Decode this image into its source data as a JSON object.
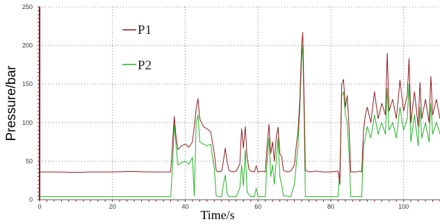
{
  "chart_data": {
    "type": "line",
    "title": "",
    "xlabel": "Time/s",
    "ylabel": "Pressure/bar",
    "xlim": [
      0,
      110
    ],
    "ylim": [
      0,
      250
    ],
    "x_ticks": [
      0,
      20,
      40,
      60,
      80,
      100
    ],
    "y_ticks": [
      0,
      50,
      100,
      150,
      200,
      250
    ],
    "grid": true,
    "legend": "top-left-inside",
    "series": [
      {
        "name": "P1",
        "color": "#8B1A1A",
        "points": [
          [
            0,
            36
          ],
          [
            5,
            36
          ],
          [
            10,
            35.5
          ],
          [
            15,
            36
          ],
          [
            20,
            36
          ],
          [
            25,
            36.5
          ],
          [
            30,
            36
          ],
          [
            36,
            36
          ],
          [
            36.5,
            70
          ],
          [
            37,
            108
          ],
          [
            37.5,
            80
          ],
          [
            38,
            65
          ],
          [
            39,
            70
          ],
          [
            40,
            72
          ],
          [
            41,
            68
          ],
          [
            42,
            75
          ],
          [
            42.5,
            95
          ],
          [
            43,
            118
          ],
          [
            43.5,
            131
          ],
          [
            44,
            105
          ],
          [
            45,
            95
          ],
          [
            46,
            92
          ],
          [
            47,
            88
          ],
          [
            48,
            60
          ],
          [
            48.5,
            38
          ],
          [
            49,
            36
          ],
          [
            50,
            37
          ],
          [
            50.5,
            50
          ],
          [
            51,
            67
          ],
          [
            51.5,
            50
          ],
          [
            52,
            38
          ],
          [
            53,
            36
          ],
          [
            54,
            37
          ],
          [
            55,
            46
          ],
          [
            55.5,
            92
          ],
          [
            56,
            67
          ],
          [
            56.5,
            95
          ],
          [
            57,
            55
          ],
          [
            57.5,
            40
          ],
          [
            58,
            37
          ],
          [
            59,
            36
          ],
          [
            59.5,
            44
          ],
          [
            60,
            36
          ],
          [
            61,
            37
          ],
          [
            62,
            36
          ],
          [
            62.5,
            70
          ],
          [
            63,
            98
          ],
          [
            63.5,
            60
          ],
          [
            64,
            75
          ],
          [
            64.5,
            50
          ],
          [
            65,
            80
          ],
          [
            65.5,
            94
          ],
          [
            66,
            60
          ],
          [
            66.5,
            56
          ],
          [
            67,
            38
          ],
          [
            68,
            36
          ],
          [
            69,
            37
          ],
          [
            70,
            45
          ],
          [
            70.5,
            70
          ],
          [
            71,
            90
          ],
          [
            71.5,
            130
          ],
          [
            72,
            200
          ],
          [
            72.3,
            217
          ],
          [
            72.7,
            120
          ],
          [
            73,
            38
          ],
          [
            74,
            36
          ],
          [
            76,
            37
          ],
          [
            78,
            36
          ],
          [
            80,
            36
          ],
          [
            82,
            37
          ],
          [
            82.5,
            20
          ],
          [
            83,
            150
          ],
          [
            83.5,
            156
          ],
          [
            84,
            120
          ],
          [
            84.5,
            135
          ],
          [
            85,
            95
          ],
          [
            85.5,
            36
          ],
          [
            87,
            36
          ],
          [
            88,
            37
          ],
          [
            88.5,
            36
          ],
          [
            89,
            90
          ],
          [
            89.5,
            110
          ],
          [
            90,
            120
          ],
          [
            91,
            100
          ],
          [
            92,
            140
          ],
          [
            93,
            105
          ],
          [
            94,
            125
          ],
          [
            95,
            110
          ],
          [
            95.5,
            190
          ],
          [
            96,
            115
          ],
          [
            97,
            130
          ],
          [
            98,
            105
          ],
          [
            99,
            155
          ],
          [
            100,
            115
          ],
          [
            101,
            135
          ],
          [
            101.5,
            183
          ],
          [
            102,
            100
          ],
          [
            103,
            140
          ],
          [
            104,
            95
          ],
          [
            104.5,
            152
          ],
          [
            105,
            105
          ],
          [
            106,
            130
          ],
          [
            107,
            100
          ],
          [
            107.5,
            160
          ],
          [
            108,
            110
          ],
          [
            109,
            130
          ],
          [
            110,
            105
          ]
        ]
      },
      {
        "name": "P2",
        "color": "#22B022",
        "points": [
          [
            0,
            4
          ],
          [
            5,
            4
          ],
          [
            10,
            4
          ],
          [
            15,
            4
          ],
          [
            20,
            4
          ],
          [
            25,
            4
          ],
          [
            30,
            4
          ],
          [
            36,
            4
          ],
          [
            36.5,
            40
          ],
          [
            37,
            98
          ],
          [
            37.5,
            70
          ],
          [
            38,
            45
          ],
          [
            39,
            48
          ],
          [
            40,
            50
          ],
          [
            41,
            46
          ],
          [
            42,
            55
          ],
          [
            42.5,
            5
          ],
          [
            43,
            100
          ],
          [
            43.5,
            110
          ],
          [
            44,
            75
          ],
          [
            45,
            72
          ],
          [
            46,
            70
          ],
          [
            47,
            72
          ],
          [
            48,
            40
          ],
          [
            48.5,
            5
          ],
          [
            49,
            4
          ],
          [
            50,
            4
          ],
          [
            50.5,
            20
          ],
          [
            51,
            32
          ],
          [
            51.5,
            8
          ],
          [
            52,
            4
          ],
          [
            54,
            4
          ],
          [
            55,
            15
          ],
          [
            55.5,
            45
          ],
          [
            56,
            18
          ],
          [
            56.5,
            65
          ],
          [
            57,
            10
          ],
          [
            58,
            4
          ],
          [
            59,
            4
          ],
          [
            59.5,
            15
          ],
          [
            60,
            4
          ],
          [
            62,
            4
          ],
          [
            62.5,
            50
          ],
          [
            63,
            80
          ],
          [
            63.5,
            30
          ],
          [
            64,
            45
          ],
          [
            64.5,
            20
          ],
          [
            65,
            50
          ],
          [
            65.5,
            80
          ],
          [
            66,
            30
          ],
          [
            66.5,
            20
          ],
          [
            67,
            5
          ],
          [
            69,
            4
          ],
          [
            70,
            20
          ],
          [
            71,
            70
          ],
          [
            71.5,
            120
          ],
          [
            72,
            185
          ],
          [
            72.3,
            200
          ],
          [
            72.7,
            100
          ],
          [
            73,
            4
          ],
          [
            76,
            4
          ],
          [
            80,
            4
          ],
          [
            82,
            4
          ],
          [
            82.5,
            40
          ],
          [
            83,
            135
          ],
          [
            83.5,
            140
          ],
          [
            84,
            110
          ],
          [
            84.5,
            100
          ],
          [
            85,
            60
          ],
          [
            85.5,
            4
          ],
          [
            88,
            4
          ],
          [
            88.5,
            4
          ],
          [
            89,
            70
          ],
          [
            89.5,
            80
          ],
          [
            90,
            95
          ],
          [
            91,
            80
          ],
          [
            92,
            110
          ],
          [
            93,
            85
          ],
          [
            94,
            100
          ],
          [
            95,
            85
          ],
          [
            95.5,
            145
          ],
          [
            96,
            90
          ],
          [
            97,
            100
          ],
          [
            98,
            80
          ],
          [
            99,
            120
          ],
          [
            100,
            90
          ],
          [
            101,
            105
          ],
          [
            101.5,
            150
          ],
          [
            102,
            75
          ],
          [
            103,
            110
          ],
          [
            104,
            70
          ],
          [
            104.5,
            120
          ],
          [
            105,
            80
          ],
          [
            106,
            100
          ],
          [
            107,
            75
          ],
          [
            107.5,
            125
          ],
          [
            108,
            85
          ],
          [
            109,
            100
          ],
          [
            110,
            85
          ]
        ]
      }
    ]
  }
}
